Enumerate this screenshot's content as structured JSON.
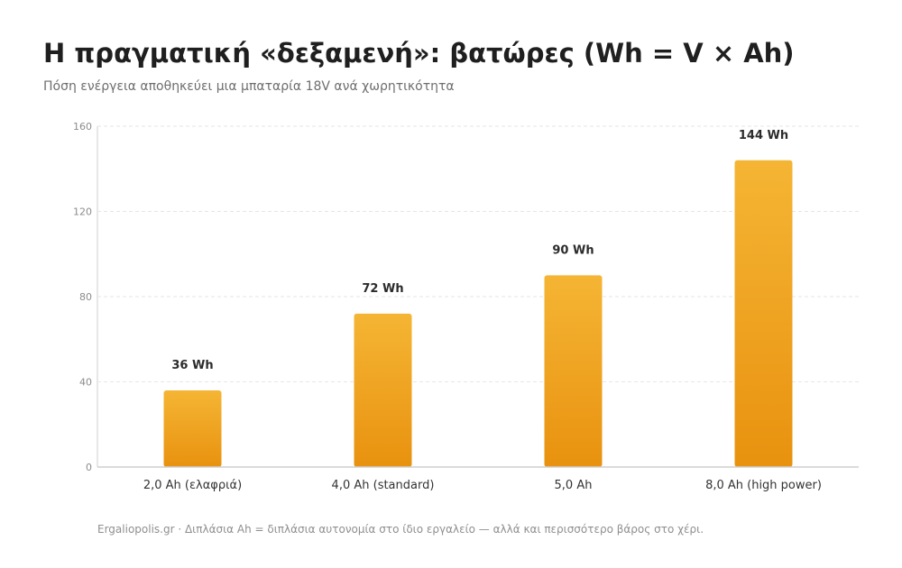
{
  "title": "Η πραγματική «δεξαμενή»: βατώρες (Wh = V × Ah)",
  "subtitle": "Πόση ενέργεια αποθηκεύει μια μπαταρία 18V ανά χωρητικότητα",
  "footer": "Ergaliopolis.gr · Διπλάσια Ah = διπλάσια αυτονομία στο ίδιο εργαλείο — αλλά και περισσότερο βάρος στο χέρι.",
  "colors": {
    "bar_top": "#f5b534",
    "bar_bottom": "#e8920f",
    "grid": "#e6e6e6",
    "axis": "#cfcfcf"
  },
  "chart_data": {
    "type": "bar",
    "categories": [
      "2,0 Ah (ελαφριά)",
      "4,0 Ah (standard)",
      "5,0 Ah",
      "8,0 Ah (high power)"
    ],
    "values": [
      36,
      72,
      90,
      144
    ],
    "data_labels": [
      "36 Wh",
      "72 Wh",
      "90 Wh",
      "144 Wh"
    ],
    "yticks": [
      0,
      40,
      80,
      120,
      160
    ],
    "ylim": [
      0,
      160
    ],
    "xlabel": "",
    "ylabel": "",
    "grid": true,
    "legend": "none"
  }
}
